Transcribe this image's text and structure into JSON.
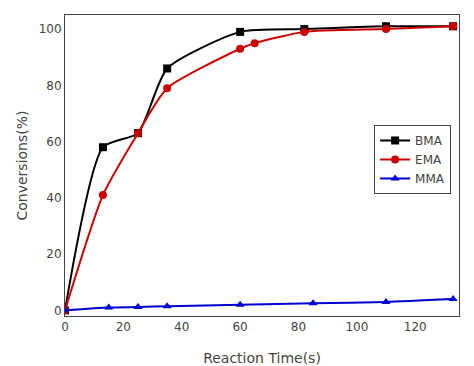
{
  "chart_data": {
    "type": "line",
    "xlabel": "Reaction Time(s)",
    "ylabel": "Conversions(%)",
    "xlim": [
      0,
      135
    ],
    "ylim": [
      -2,
      105
    ],
    "xticks": [
      0,
      20,
      40,
      60,
      80,
      100,
      120
    ],
    "yticks": [
      0,
      20,
      40,
      60,
      80,
      100
    ],
    "grid": false,
    "legend": "right",
    "series": [
      {
        "name": "BMA",
        "color": "#000000",
        "marker": "square",
        "line_style": "solid",
        "x": [
          0,
          13,
          25,
          35,
          60,
          82,
          110,
          133
        ],
        "values": [
          0,
          58,
          63,
          86,
          99,
          100,
          101,
          101
        ]
      },
      {
        "name": "EMA",
        "color": "#cc0000",
        "marker": "circle",
        "line_style": "solid",
        "x": [
          0,
          13,
          25,
          35,
          60,
          65,
          82,
          110,
          133
        ],
        "values": [
          0,
          41,
          63,
          79,
          93,
          95,
          99,
          100,
          101
        ]
      },
      {
        "name": "MMA",
        "color": "#0000cc",
        "marker": "triangle-up",
        "line_style": "solid",
        "x": [
          0,
          15,
          25,
          35,
          60,
          85,
          110,
          133
        ],
        "values": [
          0,
          1,
          1.2,
          1.5,
          2,
          2.5,
          3,
          4
        ]
      }
    ]
  }
}
